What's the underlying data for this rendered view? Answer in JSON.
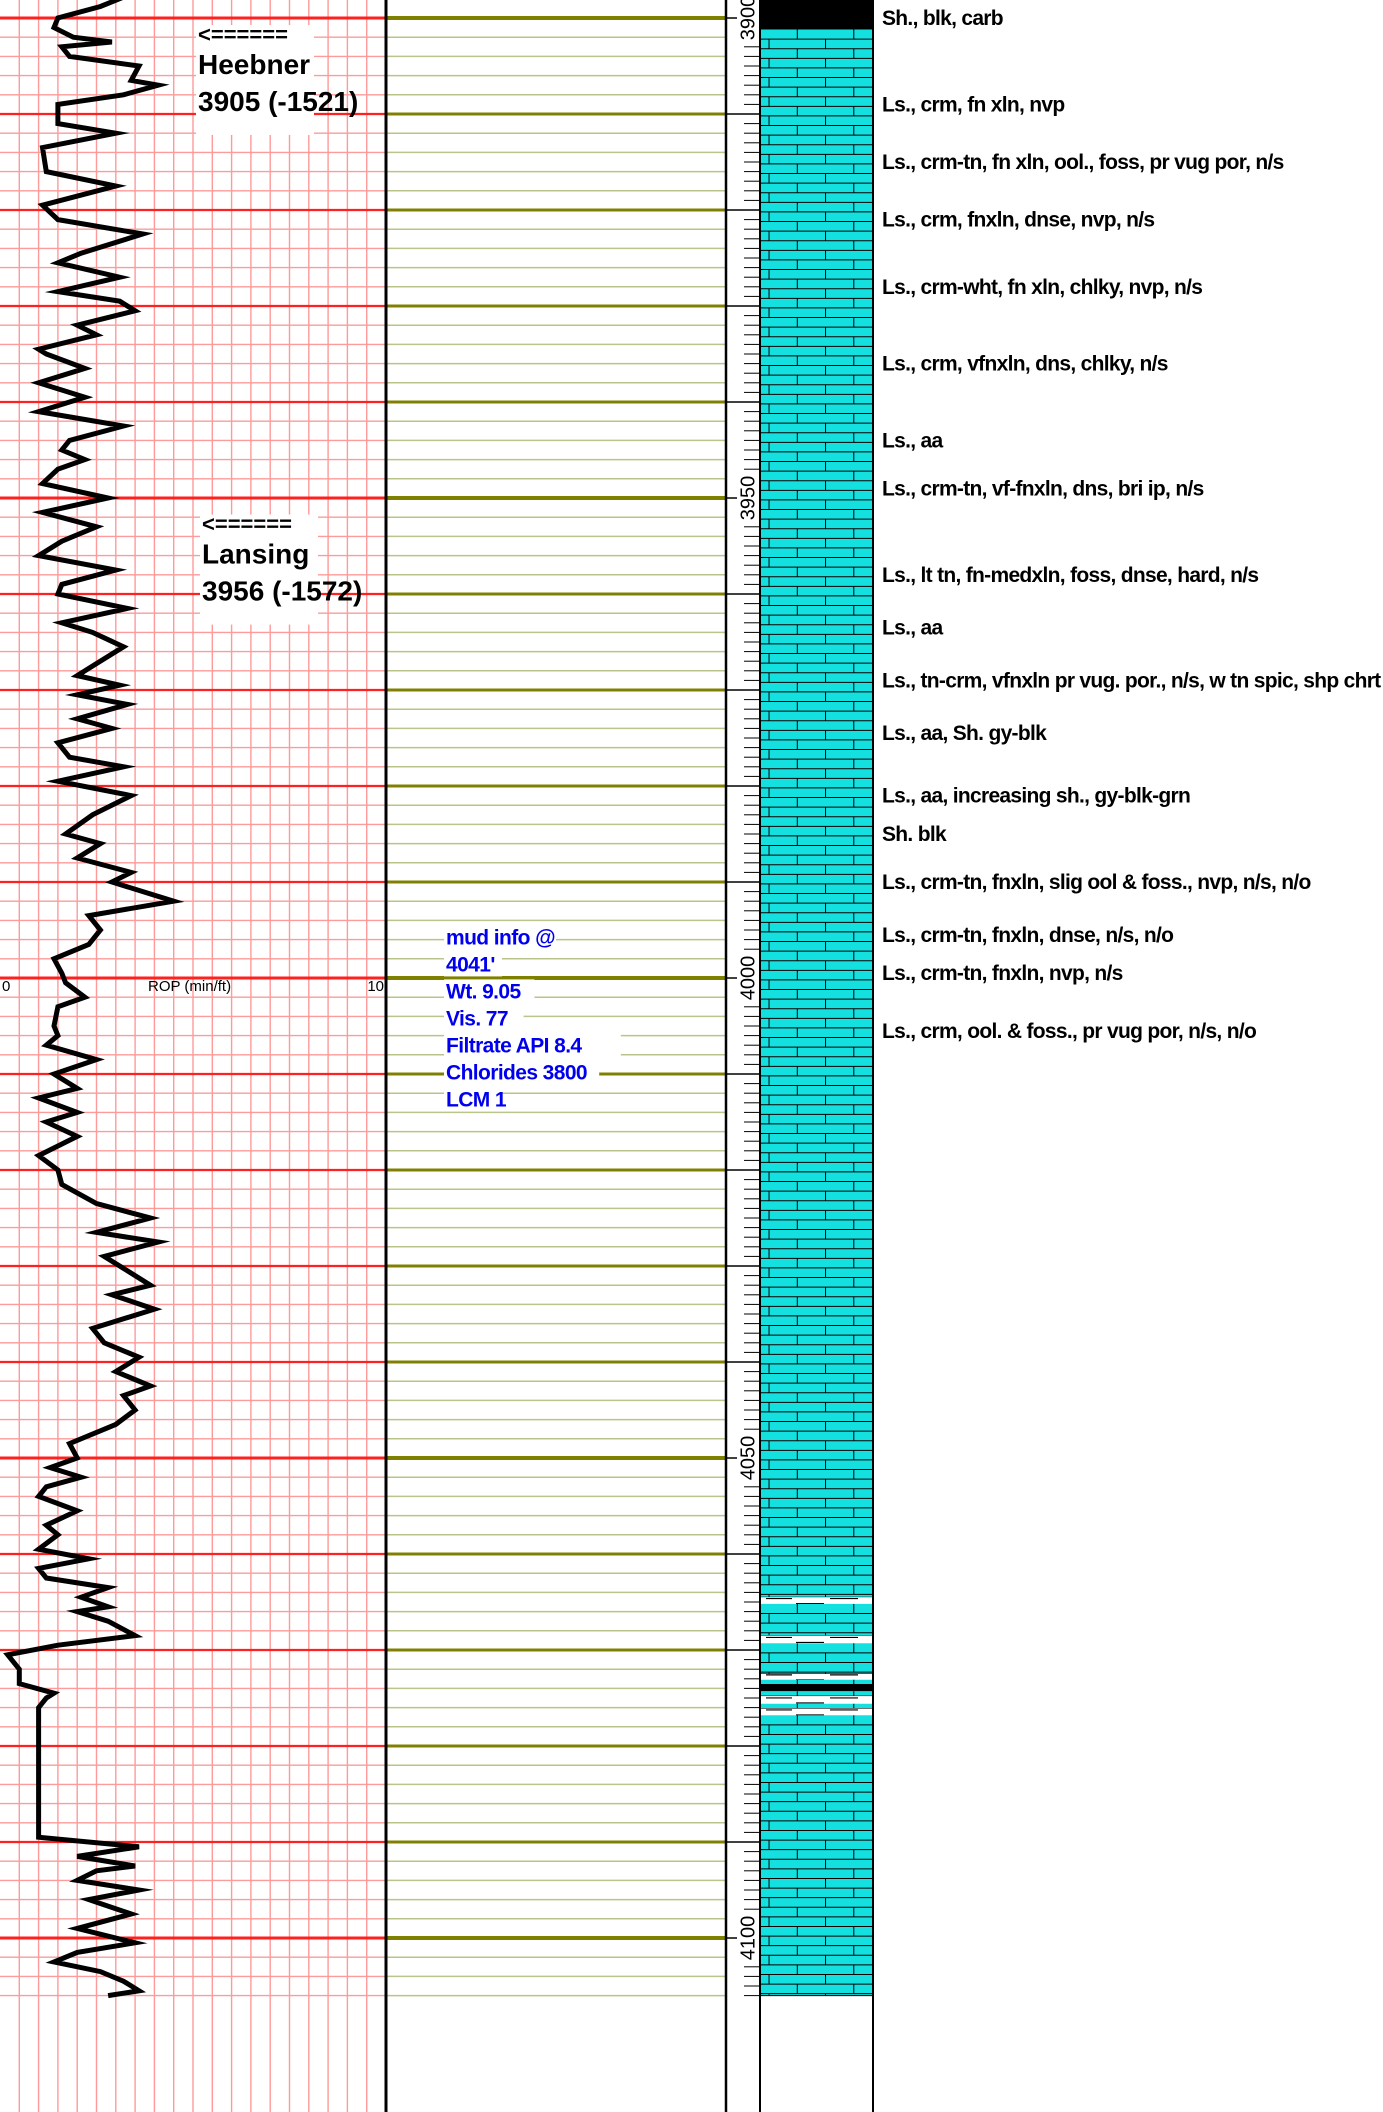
{
  "chart_data": {
    "type": "line",
    "title": "",
    "depth_axis": {
      "label_values": [
        3900,
        3950,
        4000,
        4050,
        4100
      ],
      "range": [
        3896,
        4106
      ],
      "major_every": 10,
      "minor_every": 2,
      "tick_every": 1
    },
    "rop_track": {
      "label": "ROP (min/ft)",
      "min_label": "0",
      "max_label": "10",
      "min": 0,
      "max": 10,
      "label_depth": 4000,
      "color": "#000000",
      "grid_major_color": "#ff2020",
      "grid_minor_color": "#ff9a9a",
      "series": [
        {
          "depth": 3896.0,
          "rop": 1.2
        },
        {
          "depth": 3897.0,
          "rop": 1.4
        },
        {
          "depth": 3897.5,
          "rop": 3.4
        },
        {
          "depth": 3898.8,
          "rop": 2.6
        },
        {
          "depth": 3900.0,
          "rop": 1.5
        },
        {
          "depth": 3901.0,
          "rop": 1.4
        },
        {
          "depth": 3902.0,
          "rop": 1.9
        },
        {
          "depth": 3902.5,
          "rop": 2.9
        },
        {
          "depth": 3903.0,
          "rop": 1.6
        },
        {
          "depth": 3904.0,
          "rop": 1.8
        },
        {
          "depth": 3905.0,
          "rop": 3.6
        },
        {
          "depth": 3906.5,
          "rop": 3.4
        },
        {
          "depth": 3907.0,
          "rop": 4.1
        },
        {
          "depth": 3908.0,
          "rop": 3.2
        },
        {
          "depth": 3909.0,
          "rop": 1.5
        },
        {
          "depth": 3911.0,
          "rop": 1.5
        },
        {
          "depth": 3912.0,
          "rop": 3.0
        },
        {
          "depth": 3913.5,
          "rop": 1.1
        },
        {
          "depth": 3916.0,
          "rop": 1.2
        },
        {
          "depth": 3917.5,
          "rop": 3.0
        },
        {
          "depth": 3919.5,
          "rop": 1.1
        },
        {
          "depth": 3921.0,
          "rop": 1.5
        },
        {
          "depth": 3922.5,
          "rop": 3.7
        },
        {
          "depth": 3924.5,
          "rop": 2.1
        },
        {
          "depth": 3925.5,
          "rop": 1.5
        },
        {
          "depth": 3927.0,
          "rop": 3.1
        },
        {
          "depth": 3928.5,
          "rop": 1.5
        },
        {
          "depth": 3929.5,
          "rop": 3.1
        },
        {
          "depth": 3930.5,
          "rop": 3.5
        },
        {
          "depth": 3932.0,
          "rop": 2.0
        },
        {
          "depth": 3933.0,
          "rop": 2.5
        },
        {
          "depth": 3934.5,
          "rop": 1.0
        },
        {
          "depth": 3935.0,
          "rop": 1.2
        },
        {
          "depth": 3936.5,
          "rop": 2.2
        },
        {
          "depth": 3938.0,
          "rop": 1.0
        },
        {
          "depth": 3939.5,
          "rop": 2.2
        },
        {
          "depth": 3941.0,
          "rop": 1.0
        },
        {
          "depth": 3942.5,
          "rop": 3.2
        },
        {
          "depth": 3944.0,
          "rop": 1.8
        },
        {
          "depth": 3945.0,
          "rop": 1.6
        },
        {
          "depth": 3946.0,
          "rop": 2.2
        },
        {
          "depth": 3947.0,
          "rop": 1.5
        },
        {
          "depth": 3948.5,
          "rop": 1.1
        },
        {
          "depth": 3950.0,
          "rop": 2.8
        },
        {
          "depth": 3951.5,
          "rop": 1.1
        },
        {
          "depth": 3953.0,
          "rop": 2.5
        },
        {
          "depth": 3954.5,
          "rop": 1.6
        },
        {
          "depth": 3956.0,
          "rop": 1.0
        },
        {
          "depth": 3957.5,
          "rop": 3.0
        },
        {
          "depth": 3959.0,
          "rop": 1.6
        },
        {
          "depth": 3960.0,
          "rop": 1.5
        },
        {
          "depth": 3961.5,
          "rop": 3.3
        },
        {
          "depth": 3963.0,
          "rop": 1.6
        },
        {
          "depth": 3964.0,
          "rop": 2.4
        },
        {
          "depth": 3965.5,
          "rop": 3.2
        },
        {
          "depth": 3966.5,
          "rop": 2.8
        },
        {
          "depth": 3967.5,
          "rop": 2.4
        },
        {
          "depth": 3968.5,
          "rop": 2.0
        },
        {
          "depth": 3969.5,
          "rop": 3.1
        },
        {
          "depth": 3970.5,
          "rop": 2.0
        },
        {
          "depth": 3971.5,
          "rop": 3.3
        },
        {
          "depth": 3973.0,
          "rop": 2.0
        },
        {
          "depth": 3974.0,
          "rop": 2.9
        },
        {
          "depth": 3975.5,
          "rop": 1.5
        },
        {
          "depth": 3977.0,
          "rop": 1.8
        },
        {
          "depth": 3978.0,
          "rop": 3.2
        },
        {
          "depth": 3979.5,
          "rop": 1.5
        },
        {
          "depth": 3981.0,
          "rop": 3.4
        },
        {
          "depth": 3983.0,
          "rop": 2.4
        },
        {
          "depth": 3985.0,
          "rop": 1.7
        },
        {
          "depth": 3986.0,
          "rop": 2.6
        },
        {
          "depth": 3987.5,
          "rop": 2.0
        },
        {
          "depth": 3989.0,
          "rop": 3.4
        },
        {
          "depth": 3990.0,
          "rop": 2.9
        },
        {
          "depth": 3992.0,
          "rop": 4.5
        },
        {
          "depth": 3993.5,
          "rop": 2.3
        },
        {
          "depth": 3995.0,
          "rop": 2.6
        },
        {
          "depth": 3996.5,
          "rop": 2.3
        },
        {
          "depth": 3998.0,
          "rop": 1.4
        },
        {
          "depth": 3999.5,
          "rop": 1.6
        },
        {
          "depth": 4000.5,
          "rop": 1.7
        },
        {
          "depth": 4002.0,
          "rop": 2.2
        },
        {
          "depth": 4003.0,
          "rop": 1.5
        },
        {
          "depth": 4005.0,
          "rop": 1.4
        },
        {
          "depth": 4006.0,
          "rop": 1.5
        },
        {
          "depth": 4007.0,
          "rop": 1.2
        },
        {
          "depth": 4008.5,
          "rop": 2.5
        },
        {
          "depth": 4010.0,
          "rop": 1.4
        },
        {
          "depth": 4011.5,
          "rop": 2.0
        },
        {
          "depth": 4012.5,
          "rop": 1.0
        },
        {
          "depth": 4014.0,
          "rop": 2.0
        },
        {
          "depth": 4015.0,
          "rop": 1.2
        },
        {
          "depth": 4016.5,
          "rop": 2.0
        },
        {
          "depth": 4018.5,
          "rop": 1.0
        },
        {
          "depth": 4020.0,
          "rop": 1.5
        },
        {
          "depth": 4021.5,
          "rop": 1.6
        },
        {
          "depth": 4023.5,
          "rop": 2.5
        },
        {
          "depth": 4025.0,
          "rop": 3.9
        },
        {
          "depth": 4026.5,
          "rop": 2.5
        },
        {
          "depth": 4027.5,
          "rop": 4.1
        },
        {
          "depth": 4029.0,
          "rop": 2.7
        },
        {
          "depth": 4030.5,
          "rop": 3.3
        },
        {
          "depth": 4032.0,
          "rop": 3.9
        },
        {
          "depth": 4033.0,
          "rop": 2.9
        },
        {
          "depth": 4034.5,
          "rop": 4.0
        },
        {
          "depth": 4036.5,
          "rop": 2.4
        },
        {
          "depth": 4038.0,
          "rop": 2.7
        },
        {
          "depth": 4039.5,
          "rop": 3.6
        },
        {
          "depth": 4041.0,
          "rop": 3.0
        },
        {
          "depth": 4042.5,
          "rop": 3.9
        },
        {
          "depth": 4043.5,
          "rop": 3.2
        },
        {
          "depth": 4045.0,
          "rop": 3.5
        },
        {
          "depth": 4046.5,
          "rop": 3.0
        },
        {
          "depth": 4048.5,
          "rop": 1.8
        },
        {
          "depth": 4050.0,
          "rop": 2.0
        },
        {
          "depth": 4051.0,
          "rop": 1.3
        },
        {
          "depth": 4052.0,
          "rop": 2.1
        },
        {
          "depth": 4053.0,
          "rop": 1.2
        },
        {
          "depth": 4054.0,
          "rop": 1.0
        },
        {
          "depth": 4055.5,
          "rop": 2.0
        },
        {
          "depth": 4057.0,
          "rop": 1.2
        },
        {
          "depth": 4058.0,
          "rop": 1.5
        },
        {
          "depth": 4059.5,
          "rop": 1.0
        },
        {
          "depth": 4060.5,
          "rop": 2.3
        },
        {
          "depth": 4061.5,
          "rop": 1.0
        },
        {
          "depth": 4062.5,
          "rop": 1.2
        },
        {
          "depth": 4063.5,
          "rop": 2.8
        },
        {
          "depth": 4064.5,
          "rop": 2.1
        },
        {
          "depth": 4065.5,
          "rop": 2.8
        },
        {
          "depth": 4066.0,
          "rop": 2.0
        },
        {
          "depth": 4067.0,
          "rop": 2.8
        },
        {
          "depth": 4068.5,
          "rop": 3.5
        },
        {
          "depth": 4069.5,
          "rop": 1.5
        },
        {
          "depth": 4070.5,
          "rop": 0.2
        },
        {
          "depth": 4072.0,
          "rop": 0.5
        },
        {
          "depth": 4073.5,
          "rop": 0.5
        },
        {
          "depth": 4074.5,
          "rop": 1.4
        },
        {
          "depth": 4075.0,
          "rop": 1.2
        },
        {
          "depth": 4076.0,
          "rop": 1.0
        },
        {
          "depth": 4077.5,
          "rop": 1.0
        },
        {
          "depth": 4079.5,
          "rop": 1.0
        },
        {
          "depth": 4081.0,
          "rop": 1.0
        },
        {
          "depth": 4083.0,
          "rop": 1.0
        },
        {
          "depth": 4085.0,
          "rop": 1.0
        },
        {
          "depth": 4087.5,
          "rop": 1.0
        },
        {
          "depth": 4089.5,
          "rop": 1.0
        },
        {
          "depth": 4090.5,
          "rop": 3.6
        },
        {
          "depth": 4091.5,
          "rop": 2.0
        },
        {
          "depth": 4092.5,
          "rop": 3.5
        },
        {
          "depth": 4093.0,
          "rop": 2.5
        },
        {
          "depth": 4094.0,
          "rop": 2.0
        },
        {
          "depth": 4095.0,
          "rop": 3.6
        },
        {
          "depth": 4096.0,
          "rop": 2.3
        },
        {
          "depth": 4097.5,
          "rop": 3.4
        },
        {
          "depth": 4099.0,
          "rop": 2.0
        },
        {
          "depth": 4100.5,
          "rop": 3.5
        },
        {
          "depth": 4101.5,
          "rop": 2.0
        },
        {
          "depth": 4102.5,
          "rop": 1.4
        },
        {
          "depth": 4103.5,
          "rop": 2.6
        },
        {
          "depth": 4104.5,
          "rop": 3.2
        },
        {
          "depth": 4105.5,
          "rop": 3.6
        },
        {
          "depth": 4106.0,
          "rop": 2.8
        }
      ]
    },
    "tops": [
      {
        "arrow": "<======",
        "name": "Heebner",
        "value": "3905 (-1521)",
        "depth": 3905
      },
      {
        "arrow": "<======",
        "name": "Lansing",
        "value": "3956 (-1572)",
        "depth": 3956
      }
    ],
    "mud_info": {
      "depth": 4041,
      "lines": [
        "mud info @",
        "4041'",
        "Wt. 9.05",
        "Vis. 77",
        "Filtrate API 8.4",
        "Chlorides 3800",
        "LCM 1"
      ],
      "color": "#0000ee"
    },
    "lithology_column": {
      "limestone_color": "#14e0e0",
      "shale_color": "#000000",
      "intervals": [
        {
          "from": 3896.0,
          "to": 3897.1,
          "type": "limestone"
        },
        {
          "from": 3897.1,
          "to": 3901.2,
          "type": "shale-black"
        },
        {
          "from": 3901.2,
          "to": 4064.5,
          "type": "limestone"
        },
        {
          "from": 4064.5,
          "to": 4065.2,
          "type": "shale-interbed"
        },
        {
          "from": 4065.2,
          "to": 4068.5,
          "type": "limestone"
        },
        {
          "from": 4068.5,
          "to": 4069.3,
          "type": "shale-interbed"
        },
        {
          "from": 4069.3,
          "to": 4072.5,
          "type": "limestone"
        },
        {
          "from": 4072.5,
          "to": 4073.1,
          "type": "shale-interbed"
        },
        {
          "from": 4073.1,
          "to": 4073.6,
          "type": "limestone"
        },
        {
          "from": 4073.6,
          "to": 4074.3,
          "type": "shale-black"
        },
        {
          "from": 4074.3,
          "to": 4074.8,
          "type": "limestone"
        },
        {
          "from": 4074.8,
          "to": 4075.6,
          "type": "shale-interbed"
        },
        {
          "from": 4075.6,
          "to": 4076.1,
          "type": "limestone"
        },
        {
          "from": 4076.1,
          "to": 4076.8,
          "type": "shale-interbed"
        },
        {
          "from": 4076.8,
          "to": 4106.0,
          "type": "limestone"
        }
      ]
    },
    "descriptions": [
      {
        "depth": 3900.0,
        "text": "Sh., blk, carb"
      },
      {
        "depth": 3909.0,
        "text": "Ls., crm, fn xln, nvp"
      },
      {
        "depth": 3915.0,
        "text": "Ls., crm-tn, fn xln, ool., foss, pr vug por, n/s"
      },
      {
        "depth": 3921.0,
        "text": "Ls., crm, fnxln, dnse, nvp, n/s"
      },
      {
        "depth": 3928.0,
        "text": "Ls., crm-wht, fn xln, chlky, nvp, n/s"
      },
      {
        "depth": 3936.0,
        "text": "Ls., crm, vfnxln, dns, chlky, n/s"
      },
      {
        "depth": 3944.0,
        "text": "Ls., aa"
      },
      {
        "depth": 3949.0,
        "text": "Ls., crm-tn, vf-fnxln, dns, bri ip, n/s"
      },
      {
        "depth": 3958.0,
        "text": "Ls., lt tn, fn-medxln, foss, dnse, hard, n/s"
      },
      {
        "depth": 3963.5,
        "text": "Ls., aa"
      },
      {
        "depth": 3969.0,
        "text": "Ls., tn-crm, vfnxln pr vug. por., n/s, w tn spic, shp chrt"
      },
      {
        "depth": 3974.5,
        "text": "Ls., aa, Sh. gy-blk"
      },
      {
        "depth": 3981.0,
        "text": "Ls., aa, increasing sh., gy-blk-grn"
      },
      {
        "depth": 3985.0,
        "text": "Sh. blk"
      },
      {
        "depth": 3990.0,
        "text": "Ls., crm-tn, fnxln, slig ool & foss., nvp, n/s, n/o"
      },
      {
        "depth": 3995.5,
        "text": "Ls., crm-tn, fnxln, dnse, n/s, n/o"
      },
      {
        "depth": 3999.5,
        "text": "Ls., crm-tn, fnxln, nvp, n/s"
      },
      {
        "depth": 4005.5,
        "text": "Ls., crm, ool. & foss., pr vug por, n/s, n/o"
      }
    ],
    "gas_track": {
      "grid_major_color": "#808000",
      "grid_minor_color": "#b8c48a"
    }
  }
}
